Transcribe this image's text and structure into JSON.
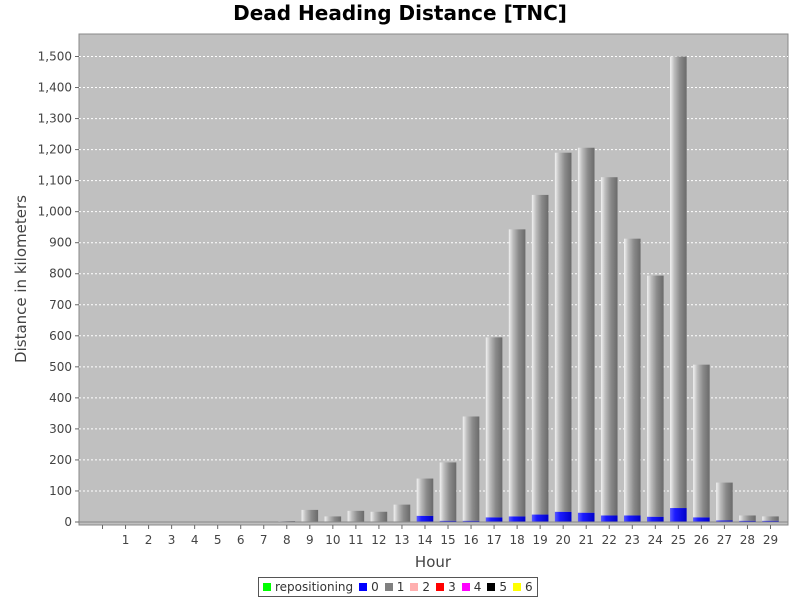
{
  "chart_data": {
    "type": "bar",
    "stacked": true,
    "title": "Dead Heading Distance [TNC]",
    "xlabel": "Hour",
    "ylabel": "Distance in kilometers",
    "ylim": [
      0,
      1600
    ],
    "yticks": [
      0,
      100,
      200,
      300,
      400,
      500,
      600,
      700,
      800,
      900,
      1000,
      1100,
      1200,
      1300,
      1400,
      1500
    ],
    "ytick_labels": [
      "0",
      "100",
      "200",
      "300",
      "400",
      "500",
      "600",
      "700",
      "800",
      "900",
      "1,000",
      "1,100",
      "1,200",
      "1,300",
      "1,400",
      "1,500"
    ],
    "grid": true,
    "legend_position": "bottom",
    "categories": [
      "0",
      "1",
      "2",
      "3",
      "4",
      "5",
      "6",
      "7",
      "8",
      "9",
      "10",
      "11",
      "12",
      "13",
      "14",
      "15",
      "16",
      "17",
      "18",
      "19",
      "20",
      "21",
      "22",
      "23",
      "24",
      "25",
      "26",
      "27",
      "28",
      "29"
    ],
    "x_tick_labels": [
      "",
      "1",
      "2",
      "3",
      "4",
      "5",
      "6",
      "7",
      "8",
      "9",
      "10",
      "11",
      "12",
      "13",
      "14",
      "15",
      "16",
      "17",
      "18",
      "19",
      "20",
      "21",
      "22",
      "23",
      "24",
      "25",
      "26",
      "27",
      "28",
      "29"
    ],
    "series": [
      {
        "name": "repositioning",
        "color": "#00ff00",
        "values": [
          0,
          0,
          0,
          0,
          0,
          0,
          0,
          0,
          0,
          0,
          0,
          0,
          0,
          0,
          0,
          0,
          0,
          0,
          0,
          0,
          0,
          0,
          0,
          0,
          0,
          0,
          0,
          0,
          0,
          0
        ]
      },
      {
        "name": "0",
        "color": "#0000ff",
        "values": [
          0,
          0,
          0,
          0,
          0,
          0,
          0,
          0,
          2,
          1,
          1,
          1,
          1,
          1,
          20,
          4,
          4,
          15,
          18,
          24,
          33,
          30,
          21,
          21,
          17,
          45,
          15,
          5,
          4,
          4
        ]
      },
      {
        "name": "1",
        "color": "#808080",
        "values": [
          0,
          0,
          0,
          0,
          0,
          0,
          0,
          0,
          1,
          38,
          17,
          35,
          32,
          55,
          120,
          188,
          336,
          580,
          925,
          1030,
          1157,
          1176,
          1090,
          892,
          777,
          1455,
          492,
          122,
          17,
          14
        ]
      },
      {
        "name": "2",
        "color": "#ffafaf",
        "values": [
          0,
          0,
          0,
          0,
          0,
          0,
          0,
          0,
          0,
          0,
          0,
          0,
          0,
          0,
          0,
          0,
          0,
          0,
          0,
          0,
          0,
          0,
          0,
          0,
          0,
          0,
          0,
          0,
          0,
          0
        ]
      },
      {
        "name": "3",
        "color": "#ff0000",
        "values": [
          0,
          0,
          0,
          0,
          0,
          0,
          0,
          0,
          0,
          0,
          0,
          0,
          0,
          0,
          0,
          0,
          0,
          0,
          0,
          0,
          0,
          0,
          0,
          0,
          0,
          0,
          0,
          0,
          0,
          0
        ]
      },
      {
        "name": "4",
        "color": "#ff00ff",
        "values": [
          0,
          0,
          0,
          0,
          0,
          0,
          0,
          0,
          0,
          0,
          0,
          0,
          0,
          0,
          0,
          0,
          0,
          0,
          0,
          0,
          0,
          0,
          0,
          0,
          0,
          0,
          0,
          0,
          0,
          0
        ]
      },
      {
        "name": "5",
        "color": "#000000",
        "values": [
          0,
          0,
          0,
          0,
          0,
          0,
          0,
          0,
          0,
          0,
          0,
          0,
          0,
          0,
          0,
          0,
          0,
          0,
          0,
          0,
          0,
          0,
          0,
          0,
          0,
          0,
          0,
          0,
          0,
          0
        ]
      },
      {
        "name": "6",
        "color": "#ffff00",
        "values": [
          0,
          0,
          0,
          0,
          0,
          0,
          0,
          0,
          0,
          0,
          0,
          0,
          0,
          0,
          0,
          0,
          0,
          0,
          0,
          0,
          0,
          0,
          0,
          0,
          0,
          0,
          0,
          0,
          0,
          0
        ]
      }
    ]
  }
}
